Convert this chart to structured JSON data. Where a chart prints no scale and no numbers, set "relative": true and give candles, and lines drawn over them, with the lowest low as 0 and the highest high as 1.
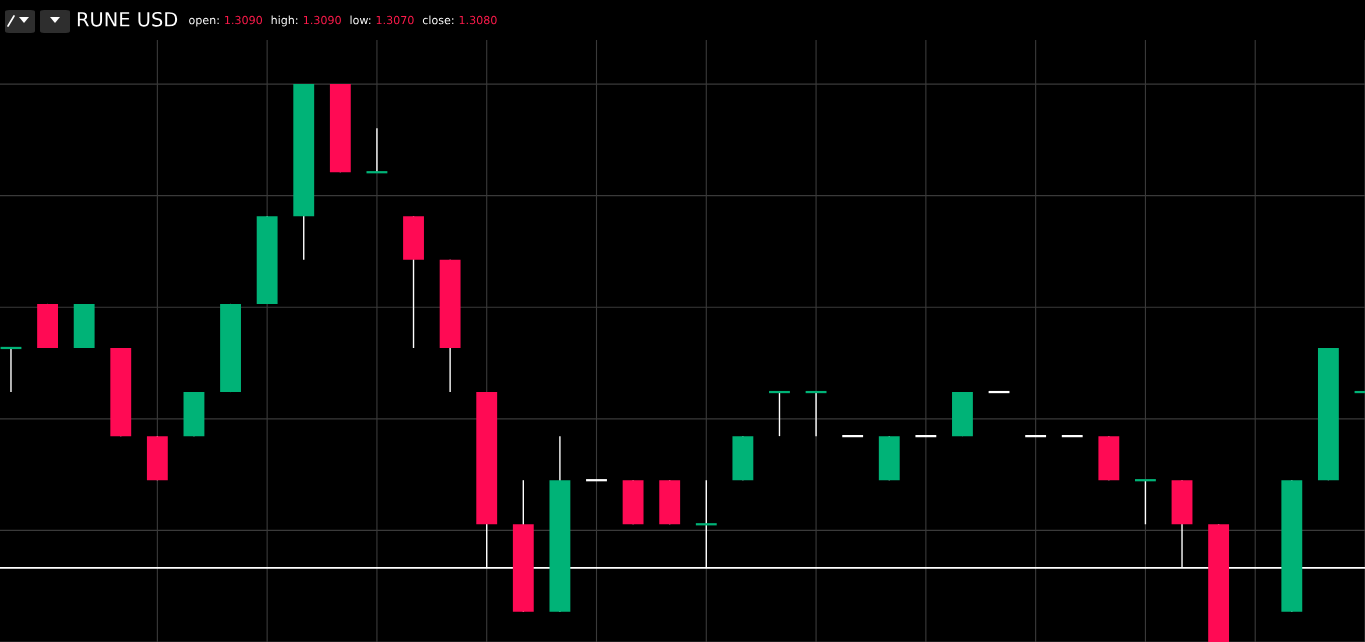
{
  "chart_data": {
    "type": "candlestick",
    "title": "RUNE USD",
    "relative": true,
    "grid": true,
    "annotations": [
      "open: 1.3090",
      "high: 1.3090",
      "low: 1.3070",
      "close: 1.3080"
    ],
    "categories": [
      null,
      null,
      null,
      null,
      null,
      null,
      null,
      null,
      null,
      null,
      null,
      null,
      null,
      null,
      null,
      null,
      null,
      null,
      null,
      null,
      null,
      null,
      null,
      null,
      null,
      null,
      null,
      null,
      null,
      null,
      null,
      null,
      null,
      null,
      null,
      null,
      null,
      null
    ],
    "ohlc": [
      [
        0.527,
        0.527,
        0.448,
        0.527
      ],
      [
        0.606,
        0.606,
        0.527,
        0.527
      ],
      [
        0.527,
        0.606,
        0.527,
        0.606
      ],
      [
        0.527,
        0.527,
        0.369,
        0.369
      ],
      [
        0.369,
        0.369,
        0.29,
        0.29
      ],
      [
        0.369,
        0.448,
        0.369,
        0.448
      ],
      [
        0.448,
        0.606,
        0.448,
        0.606
      ],
      [
        0.606,
        0.763,
        0.606,
        0.763
      ],
      [
        0.763,
        1.0,
        0.685,
        1.0
      ],
      [
        1.0,
        1.0,
        0.842,
        0.842
      ],
      [
        0.842,
        0.921,
        0.842,
        0.842
      ],
      [
        0.763,
        0.763,
        0.527,
        0.685
      ],
      [
        0.685,
        0.685,
        0.448,
        0.527
      ],
      [
        0.448,
        0.448,
        0.133,
        0.211
      ],
      [
        0.211,
        0.29,
        0.054,
        0.054
      ],
      [
        0.054,
        0.369,
        0.054,
        0.29
      ],
      [
        0.29,
        0.29,
        0.29,
        0.29
      ],
      [
        0.29,
        0.29,
        0.211,
        0.211
      ],
      [
        0.29,
        0.29,
        0.211,
        0.211
      ],
      [
        0.211,
        0.29,
        0.133,
        0.211
      ],
      [
        0.29,
        0.369,
        0.29,
        0.369
      ],
      [
        0.448,
        0.448,
        0.369,
        0.448
      ],
      [
        0.448,
        0.448,
        0.369,
        0.448
      ],
      [
        0.369,
        0.369,
        0.369,
        0.369
      ],
      [
        0.29,
        0.369,
        0.29,
        0.369
      ],
      [
        0.369,
        0.369,
        0.369,
        0.369
      ],
      [
        0.369,
        0.448,
        0.369,
        0.448
      ],
      [
        0.448,
        0.448,
        0.448,
        0.448
      ],
      [
        0.369,
        0.369,
        0.369,
        0.369
      ],
      [
        0.369,
        0.369,
        0.369,
        0.369
      ],
      [
        0.369,
        0.369,
        0.29,
        0.29
      ],
      [
        0.29,
        0.29,
        0.211,
        0.29
      ],
      [
        0.29,
        0.29,
        0.133,
        0.211
      ],
      [
        0.211,
        0.211,
        0.0,
        0.0
      ],
      null,
      [
        0.054,
        0.29,
        0.054,
        0.29
      ],
      [
        0.29,
        0.527,
        0.29,
        0.527
      ],
      [
        0.448,
        0.448,
        0.448,
        0.448
      ]
    ],
    "colors": [
      "#00b377",
      "#ff0a54",
      "#00b377",
      "#ff0a54",
      "#ff0a54",
      "#00b377",
      "#00b377",
      "#00b377",
      "#00b377",
      "#ff0a54",
      "#00b377",
      "#ff0a54",
      "#ff0a54",
      "#ff0a54",
      "#ff0a54",
      "#00b377",
      "#ffffff",
      "#ff0a54",
      "#ff0a54",
      "#00b377",
      "#00b377",
      "#00b377",
      "#00b377",
      "#ffffff",
      "#00b377",
      "#ffffff",
      "#00b377",
      "#ffffff",
      "#ffffff",
      "#ffffff",
      "#ff0a54",
      "#00b377",
      "#ff0a54",
      "#ff0a54",
      null,
      "#00b377",
      "#00b377",
      "#00b377"
    ],
    "ref_lines": [
      {
        "axis": "y",
        "value": 0.133,
        "color": "#ffffff"
      }
    ]
  }
}
